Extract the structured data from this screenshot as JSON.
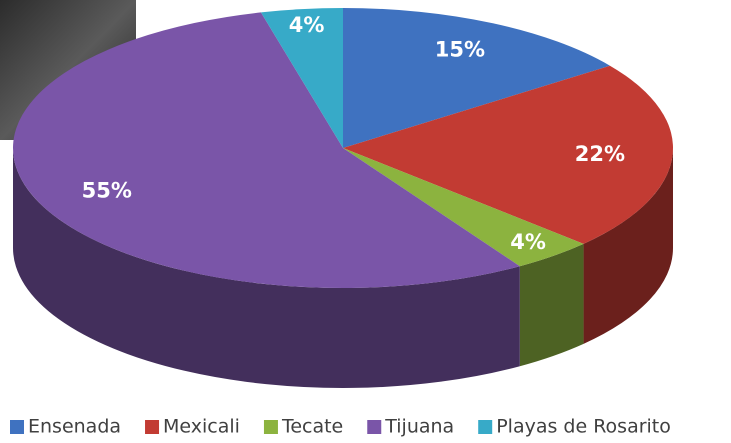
{
  "chart_data": {
    "type": "pie3d",
    "categories": [
      "Ensenada",
      "Mexicali",
      "Tecate",
      "Tijuana",
      "Playas de Rosarito"
    ],
    "values": [
      15,
      22,
      4,
      55,
      4
    ],
    "value_labels": [
      "15%",
      "22%",
      "4%",
      "55%",
      "4%"
    ],
    "colors": [
      "#3f72c0",
      "#c23b33",
      "#8cb33f",
      "#7a55a8",
      "#37aac8"
    ],
    "legend": "bottom"
  }
}
